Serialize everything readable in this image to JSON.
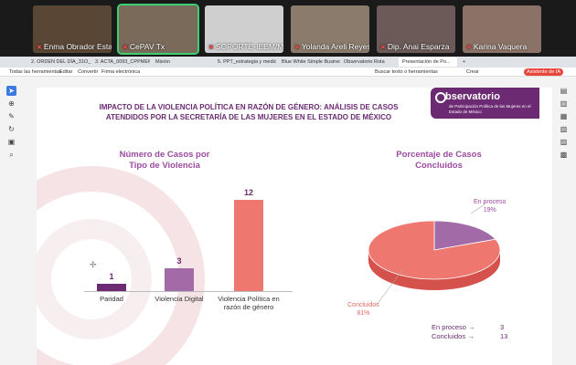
{
  "participants": [
    {
      "name": "Enma Obrador Estad...",
      "bg": "#5a4635"
    },
    {
      "name": "CePAV Tx",
      "bg": "#7a6a5a",
      "active": true
    },
    {
      "name": "SOPORTE-IEEM/MAUR...",
      "bg": "#cfcfcf"
    },
    {
      "name": "Yolanda Areli Reyes ...",
      "bg": "#8b7b6c"
    },
    {
      "name": "Dip. Anai Esparza",
      "bg": "#6b5a57"
    },
    {
      "name": "Karina Vaquera",
      "bg": "#8a7366"
    }
  ],
  "tabs": [
    {
      "label": "2. ORDEN DEL DÍA_31O_"
    },
    {
      "label": "3. ACTA_0093_CPPMEM_"
    },
    {
      "label": "Misión"
    },
    {
      "label": "5. PPT_estrategia y medios"
    },
    {
      "label": "Blue White Simple Busines..."
    },
    {
      "label": "Observatorio Rota"
    },
    {
      "label": "Presentación de Po...",
      "active": true
    }
  ],
  "new_tab_label": "+",
  "toolbar": {
    "all_tools": "Todas las herramientas",
    "edit": "Editar",
    "convert": "Convertir",
    "sign": "Firma electrónica",
    "search": "Buscar texto o herramientas",
    "create": "Crear",
    "assistant": "Asistente de IA"
  },
  "slide": {
    "title_line1": "IMPACTO DE LA VIOLENCIA POLÍTICA EN RAZÓN DE GÉNERO: ANÁLISIS DE CASOS",
    "title_line2": "ATENDIDOS POR LA SECRETARÍA DE LAS MUJERES EN EL ESTADO DE MÉXICO",
    "brand_name": "bservatorio",
    "brand_sub": "de Participación Política de las Mujeres en el Estado de México"
  },
  "chart_data": [
    {
      "type": "bar",
      "title_line1": "Número de Casos por",
      "title_line2": "Tipo de Violencia",
      "categories": [
        "Paridad",
        "Violencia Digital",
        "Violencia Política en razón de género"
      ],
      "category_lines": [
        [
          "Paridad"
        ],
        [
          "Violencia Digital"
        ],
        [
          "Violencia Política en",
          "razón de género"
        ]
      ],
      "values": [
        1,
        3,
        12
      ],
      "colors": [
        "#6b2a72",
        "#a36aa8",
        "#ee7770"
      ],
      "ylim": [
        0,
        12
      ]
    },
    {
      "type": "pie",
      "title_line1": "Porcentaje de Casos",
      "title_line2": "Concluidos",
      "slices": [
        {
          "label": "En proceso",
          "percent": "19%",
          "value": 19,
          "color": "#a36aa8"
        },
        {
          "label": "Concluidos",
          "percent": "81%",
          "value": 81,
          "color": "#ee7770"
        }
      ],
      "legend": [
        {
          "label": "En proceso",
          "value": "3"
        },
        {
          "label": "Concluidos",
          "value": "13"
        }
      ]
    }
  ]
}
